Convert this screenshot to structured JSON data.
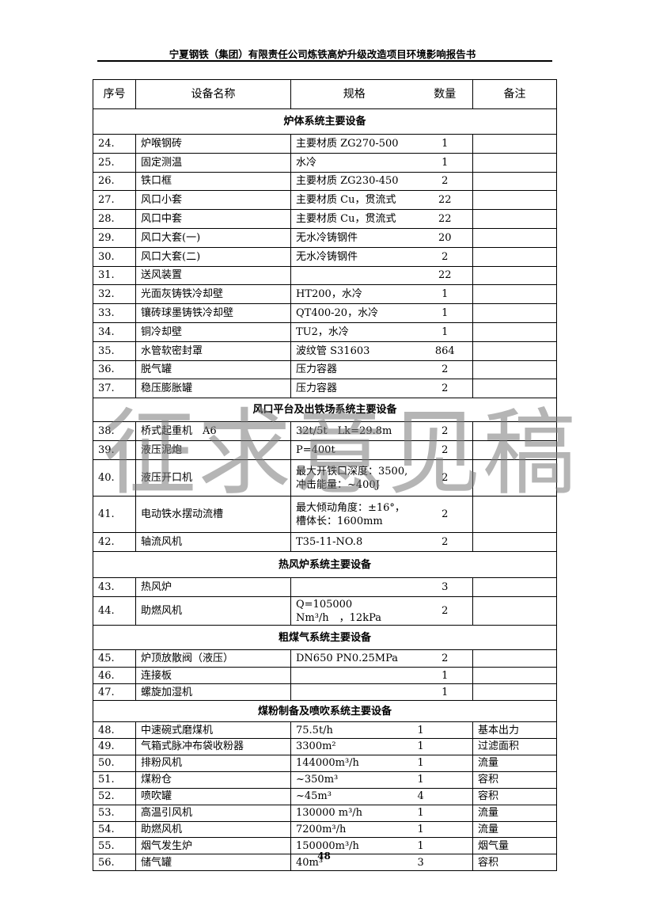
{
  "header": {
    "title": "宁夏钢铁（集团）有限责任公司炼铁高炉升级改造项目环境影响报告书"
  },
  "table": {
    "columns": [
      "序号",
      "设备名称",
      "规格",
      "数量",
      "备注"
    ],
    "sections": [
      {
        "title": "炉体系统主要设备",
        "rows": [
          [
            "24.",
            "炉喉钢砖",
            "主要材质 ZG270-500",
            "1",
            ""
          ],
          [
            "25.",
            "固定测温",
            "水冷",
            "1",
            ""
          ],
          [
            "26.",
            "铁口框",
            "主要材质 ZG230-450",
            "2",
            ""
          ],
          [
            "27.",
            "风口小套",
            "主要材质 Cu，贯流式",
            "22",
            ""
          ],
          [
            "28.",
            "风口中套",
            "主要材质 Cu，贯流式",
            "22",
            ""
          ],
          [
            "29.",
            "风口大套(一)",
            "无水冷铸钢件",
            "20",
            ""
          ],
          [
            "30.",
            "风口大套(二)",
            "无水冷铸钢件",
            "2",
            ""
          ],
          [
            "31.",
            "送风装置",
            "",
            "22",
            ""
          ],
          [
            "32.",
            "光面灰铸铁冷却壁",
            "HT200，水冷",
            "1",
            ""
          ],
          [
            "33.",
            "镶砖球墨铸铁冷却壁",
            "QT400-20，水冷",
            "1",
            ""
          ],
          [
            "34.",
            "铜冷却壁",
            "TU2，水冷",
            "1",
            ""
          ],
          [
            "35.",
            "水管软密封罩",
            "波纹管 S31603",
            "864",
            ""
          ],
          [
            "36.",
            "脱气罐",
            "压力容器",
            "2",
            ""
          ],
          [
            "37.",
            "稳压膨胀罐",
            "压力容器",
            "2",
            ""
          ]
        ]
      },
      {
        "title": "风口平台及出铁场系统主要设备",
        "rows": [
          [
            "38.",
            "桥式起重机　A6",
            "32t/5t　Lk=29.8m",
            "2",
            ""
          ],
          [
            "39.",
            "液压泥炮",
            "P=400t",
            "2",
            ""
          ],
          [
            "40.",
            "液压开口机",
            "最大开铁口深度：3500,冲击能量：~400J",
            "2",
            ""
          ],
          [
            "41.",
            "电动铁水摆动流槽",
            "最大倾动角度：±16°，槽体长：1600mm",
            "2",
            ""
          ],
          [
            "42.",
            "轴流风机",
            "T35-11-NO.8",
            "2",
            ""
          ]
        ]
      },
      {
        "title": "热风炉系统主要设备",
        "rows": [
          [
            "43.",
            "热风炉",
            "",
            "3",
            ""
          ],
          [
            "44.",
            "助燃风机",
            "Q=105000　Nm³/h　，12kPa",
            "2",
            ""
          ]
        ]
      },
      {
        "title": "粗煤气系统主要设备",
        "rows": [
          [
            "45.",
            "炉顶放散阀（液压）",
            "DN650 PN0.25MPa",
            "2",
            ""
          ],
          [
            "46.",
            "连接板",
            "",
            "1",
            ""
          ],
          [
            "47.",
            "螺旋加湿机",
            "",
            "1",
            ""
          ]
        ]
      },
      {
        "title": "煤粉制备及喷吹系统主要设备",
        "rows": [
          [
            "48.",
            "中速碗式磨煤机",
            "75.5t/h",
            "1",
            "基本出力"
          ],
          [
            "49.",
            "气箱式脉冲布袋收粉器",
            "3300m²",
            "1",
            "过滤面积"
          ],
          [
            "50.",
            "排粉风机",
            "144000m³/h",
            "1",
            "流量"
          ],
          [
            "51.",
            "煤粉仓",
            "~350m³",
            "1",
            "容积"
          ],
          [
            "52.",
            "喷吹罐",
            "~45m³",
            "4",
            "容积"
          ],
          [
            "53.",
            "高温引风机",
            "130000 m³/h",
            "1",
            "流量"
          ],
          [
            "54.",
            "助燃风机",
            "7200m³/h",
            "1",
            "流量"
          ],
          [
            "55.",
            "烟气发生炉",
            "150000m³/h",
            "1",
            "烟气量"
          ],
          [
            "56.",
            "储气罐",
            "40m³",
            "3",
            "容积"
          ]
        ]
      }
    ]
  },
  "watermark": "征求意见稿",
  "page_number": "48"
}
